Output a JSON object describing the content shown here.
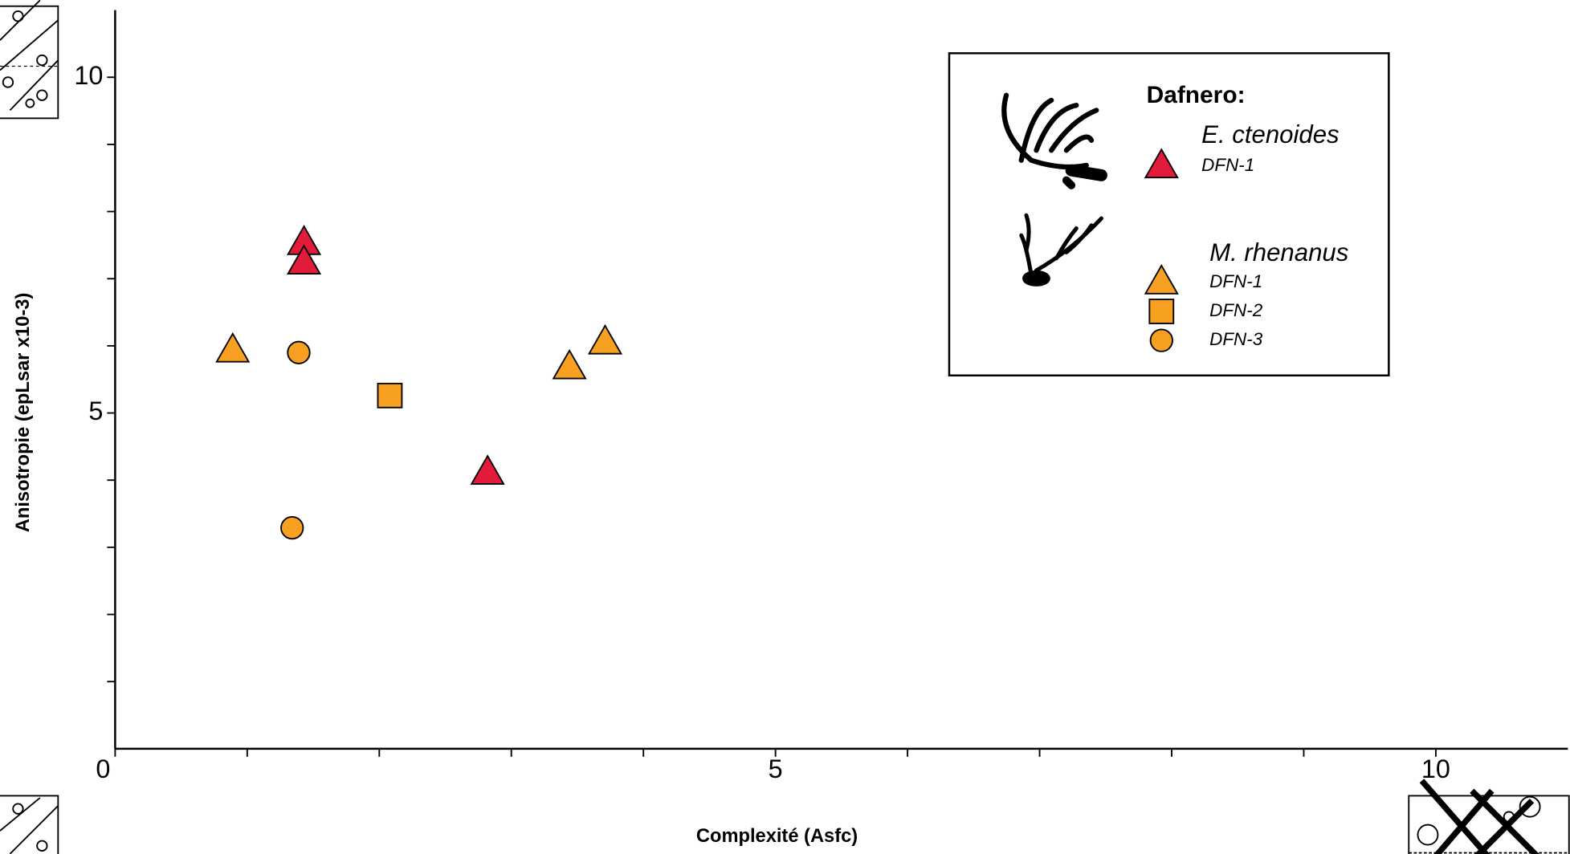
{
  "chart_data": {
    "type": "scatter",
    "xlabel": "Complexité (Asfc)",
    "ylabel": "Anisotropie (epLsar x10-3)",
    "xlim": [
      0,
      11
    ],
    "ylim": [
      0,
      11
    ],
    "xticks": [
      0,
      5,
      10
    ],
    "yticks": [
      5,
      10
    ],
    "xminorticks": [
      1,
      2,
      3,
      4,
      6,
      7,
      8,
      9
    ],
    "yminorticks": [
      1,
      2,
      3,
      4,
      6,
      7,
      8,
      9
    ],
    "legend_title": "Dafnero:",
    "groups": [
      {
        "name": "E. ctenoides",
        "series": [
          {
            "name": "DFN-1",
            "marker": "triangle",
            "color": "#e31b3a",
            "x": [
              1.43,
              1.43,
              2.82
            ],
            "values": [
              7.53,
              7.24,
              4.11
            ]
          }
        ]
      },
      {
        "name": "M. rhenanus",
        "series": [
          {
            "name": "DFN-1",
            "marker": "triangle",
            "color": "#f7a021",
            "x": [
              0.89,
              3.44,
              3.71
            ],
            "values": [
              5.93,
              5.68,
              6.05
            ]
          },
          {
            "name": "DFN-2",
            "marker": "square",
            "color": "#f7a021",
            "x": [
              2.08
            ],
            "values": [
              5.26
            ]
          },
          {
            "name": "DFN-3",
            "marker": "circle",
            "color": "#f7a021",
            "x": [
              1.39,
              1.34
            ],
            "values": [
              5.9,
              3.29
            ]
          }
        ]
      }
    ]
  }
}
